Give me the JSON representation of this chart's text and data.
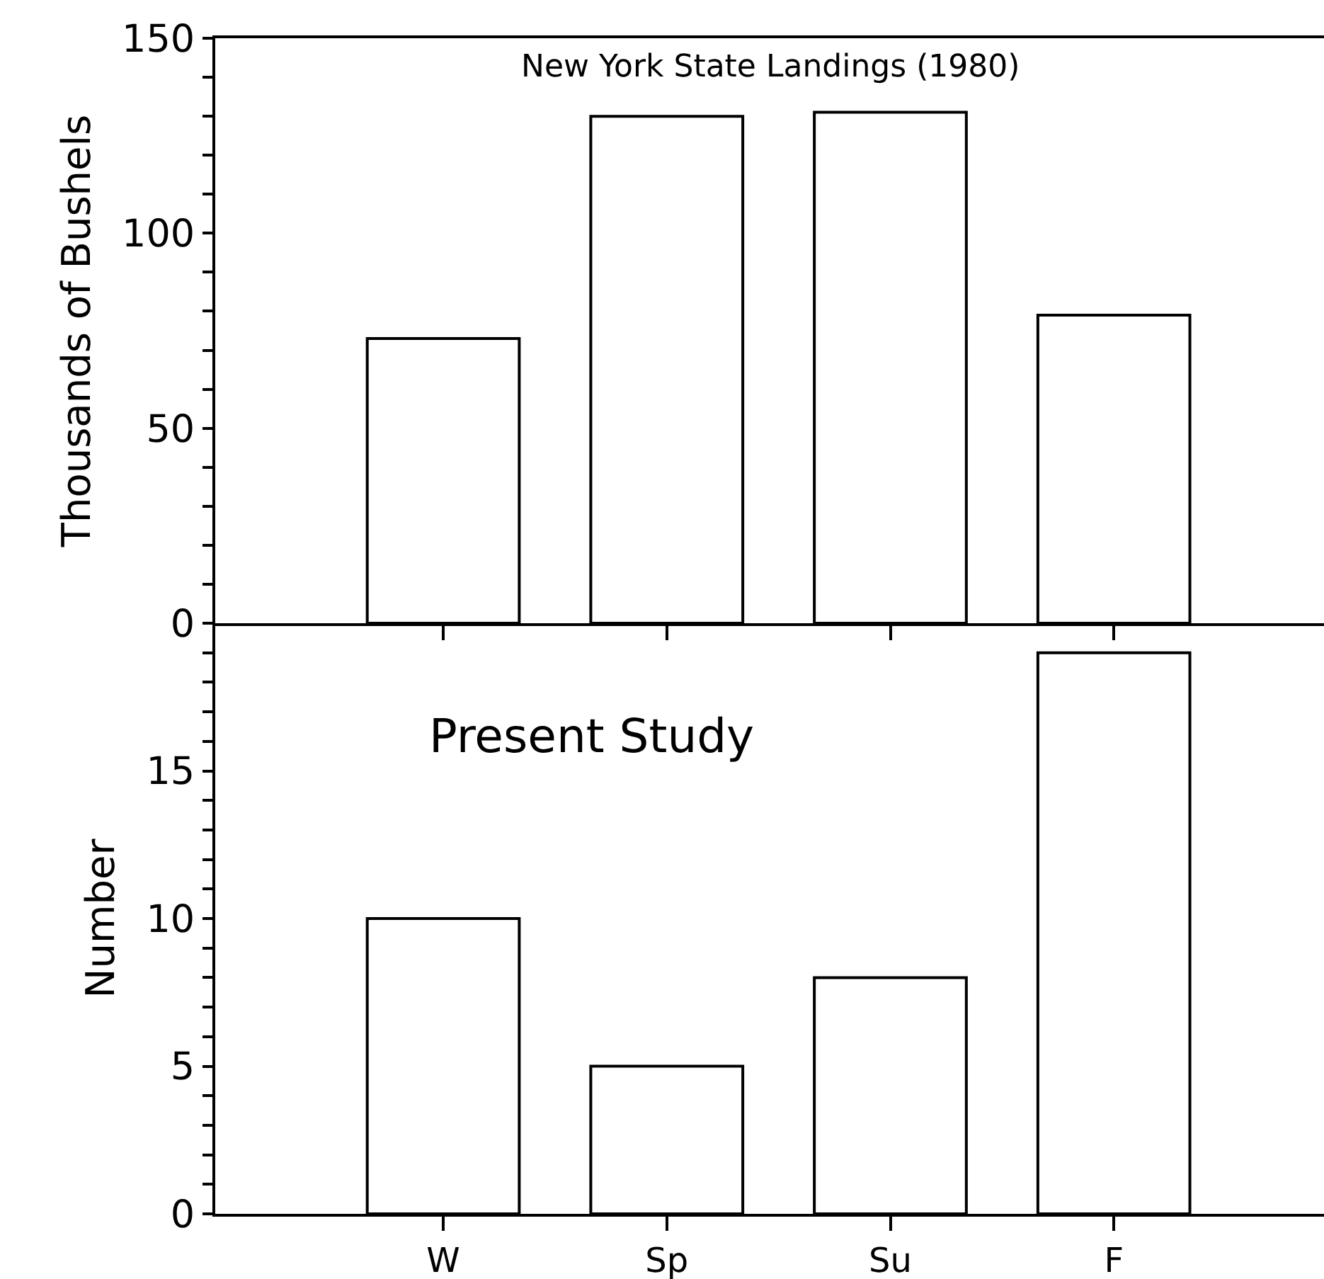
{
  "chart_data": [
    {
      "type": "bar",
      "title": "New York State Landings (1980)",
      "ylabel": "Thousands of Bushels",
      "categories": [
        null,
        null,
        null,
        null
      ],
      "values": [
        73,
        130,
        131,
        79
      ],
      "color": "#ffffff",
      "ylim": [
        0,
        150
      ],
      "yticks": [
        0,
        {
          "value": 10,
          "label": null
        },
        {
          "value": 20,
          "label": null
        },
        {
          "value": 30,
          "label": null
        },
        {
          "value": 40,
          "label": null
        },
        50,
        {
          "value": 60,
          "label": null
        },
        {
          "value": 70,
          "label": null
        },
        {
          "value": 80,
          "label": null
        },
        {
          "value": 90,
          "label": null
        },
        100,
        {
          "value": 110,
          "label": null
        },
        {
          "value": 120,
          "label": null
        },
        {
          "value": 130,
          "label": null
        },
        {
          "value": 140,
          "label": null
        },
        150
      ],
      "tick_labels": "y"
    },
    {
      "type": "bar",
      "title": "Present Study",
      "ylabel": "Number",
      "categories": [
        "W",
        "Sp",
        "Su",
        "F"
      ],
      "values": [
        10,
        5,
        8,
        19
      ],
      "color": "#ffffff",
      "ylim": [
        0,
        20
      ],
      "yticks": [
        0,
        {
          "value": 1,
          "label": null
        },
        {
          "value": 2,
          "label": null
        },
        {
          "value": 3,
          "label": null
        },
        {
          "value": 4,
          "label": null
        },
        5,
        {
          "value": 6,
          "label": null
        },
        {
          "value": 7,
          "label": null
        },
        {
          "value": 8,
          "label": null
        },
        {
          "value": 9,
          "label": null
        },
        10,
        {
          "value": 11,
          "label": null
        },
        {
          "value": 12,
          "label": null
        },
        {
          "value": 13,
          "label": null
        },
        {
          "value": 14,
          "label": null
        },
        15,
        {
          "value": 16,
          "label": null
        },
        {
          "value": 17,
          "label": null
        },
        {
          "value": 18,
          "label": null
        },
        {
          "value": 19,
          "label": null
        }
      ]
    }
  ]
}
